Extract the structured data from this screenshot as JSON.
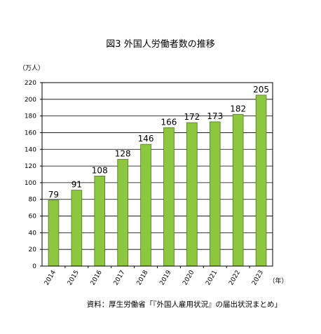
{
  "chart_data": {
    "type": "bar",
    "title": "図3 外国人労働者数の推移",
    "y_unit": "（万人）",
    "x_unit": "（年）",
    "categories": [
      "2014",
      "2015",
      "2016",
      "2017",
      "2018",
      "2019",
      "2020",
      "2021",
      "2022",
      "2023"
    ],
    "values": [
      79,
      91,
      108,
      128,
      146,
      166,
      172,
      173,
      182,
      205
    ],
    "ylim": [
      0,
      220
    ],
    "y_ticks": [
      0,
      20,
      40,
      60,
      80,
      100,
      120,
      140,
      160,
      180,
      200,
      220
    ],
    "grid": true,
    "bar_color": "#8dc63f",
    "bar_edge_color": "#4d7a1a",
    "source": "資料：厚生労働省「『外国人雇用状況』の届出状況まとめ」"
  }
}
